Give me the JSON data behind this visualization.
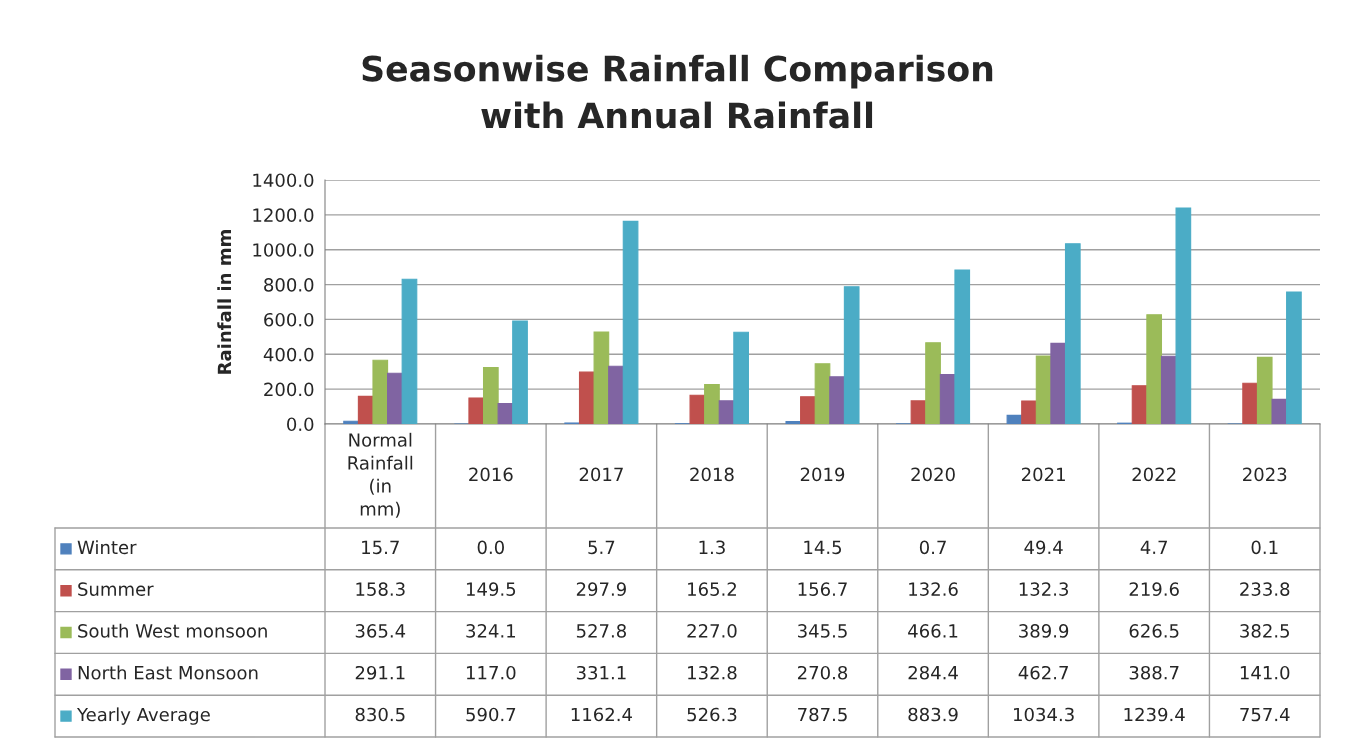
{
  "chart_data": {
    "type": "bar",
    "title": "Seasonwise Rainfall Comparison\nwith Annual Rainfall",
    "ylabel": "Rainfall in mm",
    "categories": [
      "Normal Rainfall (in mm)",
      "2016",
      "2017",
      "2018",
      "2019",
      "2020",
      "2021",
      "2022",
      "2023"
    ],
    "series": [
      {
        "name": "Winter",
        "color": "#4f81bd",
        "values": [
          15.7,
          0.0,
          5.7,
          1.3,
          14.5,
          0.7,
          49.4,
          4.7,
          0.1
        ],
        "value_labels": [
          "15.7",
          "0.0",
          "5.7",
          "1.3",
          "14.5",
          "0.7",
          "49.4",
          "4.7",
          "0.1"
        ]
      },
      {
        "name": "Summer",
        "color": "#c0504d",
        "values": [
          158.3,
          149.5,
          297.9,
          165.2,
          156.7,
          132.6,
          132.3,
          219.6,
          233.8
        ],
        "value_labels": [
          "158.3",
          "149.5",
          "297.9",
          "165.2",
          "156.7",
          "132.6",
          "132.3",
          "219.6",
          "233.8"
        ]
      },
      {
        "name": "South West monsoon",
        "color": "#9bbb59",
        "values": [
          365.4,
          324.1,
          527.8,
          227.0,
          345.5,
          466.1,
          389.9,
          626.5,
          382.5
        ],
        "value_labels": [
          "365.4",
          "324.1",
          "527.8",
          "227.0",
          "345.5",
          "466.1",
          "389.9",
          "626.5",
          "382.5"
        ]
      },
      {
        "name": "North East Monsoon",
        "color": "#8064a2",
        "values": [
          291.1,
          117.0,
          331.1,
          132.8,
          270.8,
          284.4,
          462.7,
          388.7,
          141.0
        ],
        "value_labels": [
          "291.1",
          "117.0",
          "331.1",
          "132.8",
          "270.8",
          "284.4",
          "462.7",
          "388.7",
          "141.0"
        ]
      },
      {
        "name": "Yearly Average",
        "color": "#4bacc6",
        "values": [
          830.5,
          590.7,
          1162.4,
          526.3,
          787.5,
          883.9,
          1034.3,
          1239.4,
          757.4
        ],
        "value_labels": [
          "830.5",
          "590.7",
          "1162.4",
          "526.3",
          "787.5",
          "883.9",
          "1034.3",
          "1239.4",
          "757.4"
        ]
      }
    ],
    "ylim": [
      0,
      1400
    ],
    "yticks": [
      {
        "value": 0,
        "label": "0.0"
      },
      {
        "value": 200,
        "label": "200.0"
      },
      {
        "value": 400,
        "label": "400.0"
      },
      {
        "value": 600,
        "label": "600.0"
      },
      {
        "value": 800,
        "label": "800.0"
      },
      {
        "value": 1000,
        "label": "1000.0"
      },
      {
        "value": 1200,
        "label": "1200.0"
      },
      {
        "value": 1400,
        "label": "1400.0"
      }
    ],
    "grid": "y",
    "legend": "bottom"
  }
}
